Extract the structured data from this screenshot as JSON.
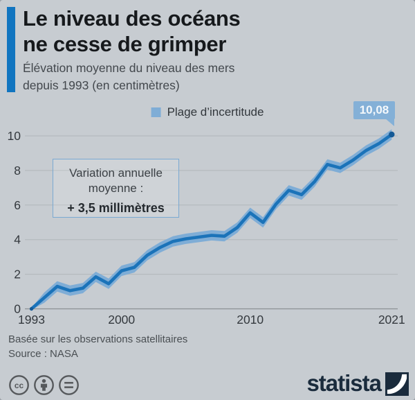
{
  "header": {
    "title_line1": "Le niveau des océans",
    "title_line2": "ne cesse de grimper",
    "subtitle_line1": "Élévation moyenne du niveau des mers",
    "subtitle_line2": "depuis 1993 (en centimètres)"
  },
  "legend": {
    "label": "Plage d’incertitude"
  },
  "end_value_label": "10,08",
  "annotation": {
    "line1": "Variation annuelle",
    "line2": "moyenne :",
    "line3": "+ 3,5 millimètres"
  },
  "footer": {
    "note": "Basée sur les observations satellitaires",
    "source": "Source : NASA",
    "brand": "statista"
  },
  "colors": {
    "background": "#c7ccd1",
    "accent_blue": "#1175c0",
    "line_blue": "#1b73b9",
    "band_blue": "#7fadd6",
    "badge_blue": "#84b0d7",
    "statista_navy": "#1a2b3c"
  },
  "chart_data": {
    "type": "line",
    "title": "Le niveau des océans ne cesse de grimper",
    "subtitle": "Élévation moyenne du niveau des mers depuis 1993 (en centimètres)",
    "ylabel": "centimètres",
    "xlabel": "",
    "x": [
      1993,
      1994,
      1995,
      1996,
      1997,
      1998,
      1999,
      2000,
      2001,
      2002,
      2003,
      2004,
      2005,
      2006,
      2007,
      2008,
      2009,
      2010,
      2011,
      2012,
      2013,
      2014,
      2015,
      2016,
      2017,
      2018,
      2019,
      2020,
      2021
    ],
    "series": [
      {
        "name": "Élévation moyenne du niveau des mers (cm)",
        "values": [
          0,
          0.65,
          1.3,
          1.05,
          1.2,
          1.85,
          1.45,
          2.2,
          2.4,
          3.1,
          3.55,
          3.9,
          4.05,
          4.15,
          4.25,
          4.2,
          4.7,
          5.55,
          5.0,
          6.05,
          6.85,
          6.6,
          7.35,
          8.35,
          8.15,
          8.6,
          9.15,
          9.55,
          10.08
        ]
      }
    ],
    "uncertainty_half_width": 0.3,
    "uncertainty_taper_start": 0.06,
    "uncertainty_name": "Plage d’incertitude",
    "xticks": [
      1993,
      2000,
      2010,
      2021
    ],
    "yticks": [
      0,
      2,
      4,
      6,
      8,
      10
    ],
    "ylim": [
      0,
      10.5
    ],
    "grid": true,
    "legend_position": "top",
    "end_label": "10,08",
    "annual_mean_variation": "+ 3,5 millimètres"
  }
}
